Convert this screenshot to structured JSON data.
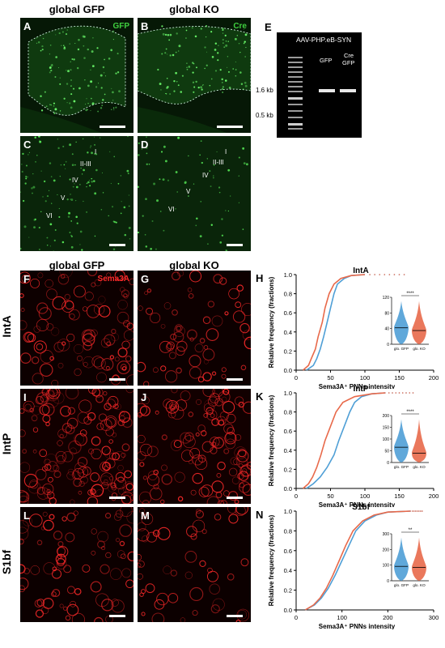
{
  "columns": {
    "gfp": "global GFP",
    "ko": "global KO"
  },
  "rows": {
    "inta": "IntA",
    "intp": "IntP",
    "s1bf": "S1bf"
  },
  "panels": {
    "A": "A",
    "B": "B",
    "C": "C",
    "D": "D",
    "E": "E",
    "F": "F",
    "G": "G",
    "I": "I",
    "J": "J",
    "L": "L",
    "M": "M",
    "H": "H",
    "K": "K",
    "N": "N"
  },
  "channels": {
    "gfp": "GFP",
    "cre": "Cre",
    "sema3a": "Sema3A"
  },
  "layers": [
    "I",
    "II-III",
    "IV",
    "V",
    "VI"
  ],
  "gel": {
    "title": "AAV-PHP.eB-SYN",
    "lane1": "GFP",
    "lane2_line1": "Cre",
    "lane2_line2": "GFP",
    "marker_high": "1.6 kb",
    "marker_low": "0.5 kb"
  },
  "colors": {
    "gfp_series": "#4f9fd6",
    "ko_series": "#e8694a",
    "green": "#3fcf3f",
    "red": "#ff2a2a"
  },
  "chart_data": [
    {
      "type": "line",
      "title": "IntA",
      "xlabel": "Sema3A⁺ PNNs intensity",
      "ylabel": "Relative frequency (fractions)",
      "xlim": [
        0,
        200
      ],
      "ylim": [
        0,
        1.0
      ],
      "xticks": [
        "0",
        "50",
        "100",
        "150",
        "200"
      ],
      "yticks": [
        "0.0",
        "0.2",
        "0.4",
        "0.6",
        "0.8",
        "1.0"
      ],
      "series": [
        {
          "name": "GFP",
          "x": [
            15,
            25,
            30,
            35,
            40,
            45,
            50,
            55,
            60,
            70,
            80,
            100
          ],
          "y": [
            0.0,
            0.05,
            0.12,
            0.22,
            0.35,
            0.5,
            0.65,
            0.8,
            0.9,
            0.96,
            0.99,
            1.0
          ]
        },
        {
          "name": "KO",
          "x": [
            10,
            18,
            22,
            28,
            32,
            38,
            42,
            48,
            55,
            65,
            80,
            100
          ],
          "y": [
            0.0,
            0.05,
            0.12,
            0.22,
            0.35,
            0.5,
            0.65,
            0.8,
            0.9,
            0.96,
            0.99,
            1.0
          ]
        }
      ],
      "inset": {
        "ylim": [
          0,
          120
        ],
        "yticks": [
          "0",
          "40",
          "80",
          "120"
        ],
        "categories": [
          "glo. GFP",
          "glo. KO"
        ],
        "medians": [
          42,
          35
        ],
        "sig": "****"
      }
    },
    {
      "type": "line",
      "title": "IntP",
      "xlabel": "Sema3A⁺ PNNs intensity",
      "ylabel": "Relative frequency (fractions)",
      "xlim": [
        0,
        200
      ],
      "ylim": [
        0,
        1.0
      ],
      "xticks": [
        "0",
        "50",
        "100",
        "150",
        "200"
      ],
      "yticks": [
        "0.0",
        "0.2",
        "0.4",
        "0.6",
        "0.8",
        "1.0"
      ],
      "series": [
        {
          "name": "GFP",
          "x": [
            15,
            25,
            35,
            45,
            55,
            62,
            70,
            78,
            85,
            95,
            110,
            130
          ],
          "y": [
            0.0,
            0.05,
            0.12,
            0.22,
            0.35,
            0.5,
            0.65,
            0.8,
            0.9,
            0.96,
            0.99,
            1.0
          ]
        },
        {
          "name": "KO",
          "x": [
            10,
            18,
            24,
            30,
            36,
            42,
            50,
            58,
            68,
            85,
            110,
            130
          ],
          "y": [
            0.0,
            0.05,
            0.12,
            0.22,
            0.35,
            0.5,
            0.65,
            0.8,
            0.9,
            0.96,
            0.99,
            1.0
          ]
        }
      ],
      "inset": {
        "ylim": [
          0,
          200
        ],
        "yticks": [
          "0",
          "50",
          "100",
          "150",
          "200"
        ],
        "categories": [
          "glo. GFP",
          "glo. KO"
        ],
        "medians": [
          65,
          40
        ],
        "sig": "****"
      }
    },
    {
      "type": "line",
      "title": "S1bf",
      "xlabel": "Sema3A⁺ PNNs intensity",
      "ylabel": "Relative frequency (fractions)",
      "xlim": [
        0,
        300
      ],
      "ylim": [
        0,
        1.0
      ],
      "xticks": [
        "0",
        "100",
        "200",
        "300"
      ],
      "yticks": [
        "0.0",
        "0.2",
        "0.4",
        "0.6",
        "0.8",
        "1.0"
      ],
      "series": [
        {
          "name": "GFP",
          "x": [
            20,
            40,
            55,
            70,
            85,
            100,
            115,
            130,
            150,
            175,
            200,
            250
          ],
          "y": [
            0.0,
            0.05,
            0.12,
            0.22,
            0.35,
            0.5,
            0.65,
            0.8,
            0.9,
            0.96,
            0.99,
            1.0
          ]
        },
        {
          "name": "KO",
          "x": [
            20,
            38,
            52,
            66,
            80,
            94,
            108,
            124,
            145,
            170,
            200,
            250
          ],
          "y": [
            0.0,
            0.05,
            0.12,
            0.22,
            0.35,
            0.5,
            0.65,
            0.8,
            0.9,
            0.96,
            0.99,
            1.0
          ]
        }
      ],
      "inset": {
        "ylim": [
          0,
          300
        ],
        "yticks": [
          "0",
          "100",
          "200",
          "300"
        ],
        "categories": [
          "glo. GFP",
          "glo. KO"
        ],
        "medians": [
          92,
          85
        ],
        "sig": "**"
      }
    }
  ]
}
